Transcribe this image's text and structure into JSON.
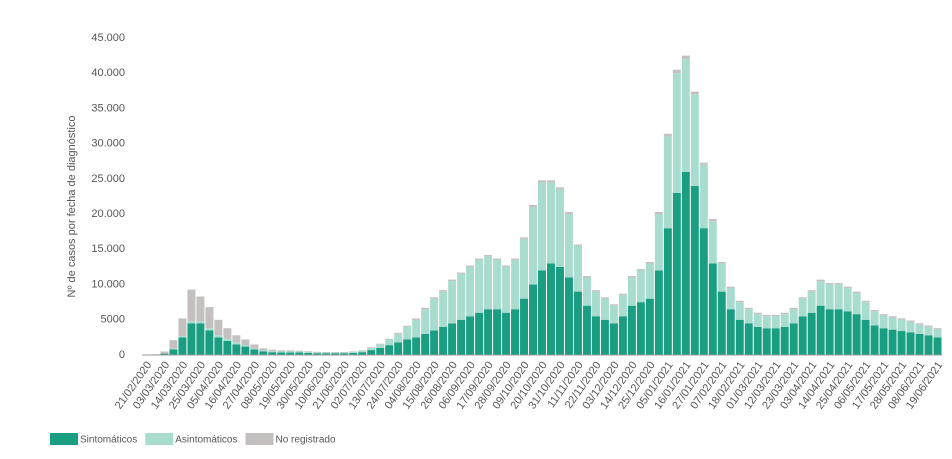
{
  "chart_data": {
    "type": "stacked_bar",
    "y_label": "Nº de casos por fecha de diagnóstico",
    "categories": [
      "21/02/2020",
      null,
      "03/03/2020",
      null,
      "14/03/2020",
      null,
      "25/03/2020",
      null,
      "05/04/2020",
      null,
      "16/04/2020",
      null,
      "27/04/2020",
      null,
      "08/05/2020",
      null,
      "19/05/2020",
      null,
      "30/05/2020",
      null,
      "10/06/2020",
      null,
      "21/06/2020",
      null,
      "02/07/2020",
      null,
      "13/07/2020",
      null,
      "24/07/2020",
      null,
      "04/08/2020",
      null,
      "15/08/2020",
      null,
      "26/08/2020",
      null,
      "06/09/2020",
      null,
      "17/09/2020",
      null,
      "28/09/2020",
      null,
      "09/10/2020",
      null,
      "20/10/2020",
      null,
      "31/10/2020",
      null,
      "11/11/2020",
      null,
      "22/11/2020",
      null,
      "03/12/2020",
      null,
      "14/12/2020",
      null,
      "25/12/2020",
      null,
      "05/01/2021",
      null,
      "16/01/2021",
      null,
      "27/01/2021",
      null,
      "07/02/2021",
      null,
      "18/02/2021",
      null,
      "01/03/2021",
      null,
      "12/03/2021",
      null,
      "23/03/2021",
      null,
      "03/04/2021",
      null,
      "14/04/2021",
      null,
      "25/04/2021",
      null,
      "06/05/2021",
      null,
      "17/05/2021",
      null,
      "28/05/2021",
      null,
      "08/06/2021",
      null,
      "19/06/2021"
    ],
    "series": [
      {
        "name": "Sintomáticos",
        "color": "#1a9e82",
        "values": [
          0,
          50,
          200,
          800,
          2500,
          4500,
          4500,
          3500,
          2500,
          2000,
          1500,
          1200,
          800,
          500,
          400,
          350,
          350,
          350,
          300,
          250,
          250,
          250,
          250,
          300,
          400,
          700,
          1000,
          1400,
          1800,
          2200,
          2500,
          3000,
          3500,
          4000,
          4500,
          5000,
          5500,
          6000,
          6500,
          6500,
          6000,
          6500,
          8000,
          10000,
          12000,
          13000,
          12500,
          11000,
          9000,
          7000,
          5500,
          5000,
          4500,
          5500,
          7000,
          7500,
          8000,
          12000,
          18000,
          23000,
          26000,
          24000,
          18000,
          13000,
          9000,
          6500,
          5000,
          4500,
          4000,
          3800,
          3800,
          4000,
          4500,
          5500,
          6000,
          7000,
          6500,
          6500,
          6200,
          5800,
          5000,
          4200,
          3800,
          3600,
          3400,
          3200,
          3000,
          2800,
          2500
        ]
      },
      {
        "name": "Asintomáticos",
        "color": "#a8dccf",
        "values": [
          0,
          0,
          0,
          100,
          200,
          300,
          300,
          300,
          300,
          300,
          300,
          200,
          200,
          150,
          150,
          150,
          150,
          150,
          150,
          100,
          100,
          100,
          100,
          150,
          200,
          300,
          500,
          800,
          1200,
          1800,
          2500,
          3500,
          4500,
          5000,
          6000,
          6500,
          7000,
          7500,
          7500,
          7000,
          6500,
          7000,
          8500,
          11000,
          12500,
          11500,
          11000,
          9000,
          6500,
          4000,
          3500,
          3000,
          2500,
          3000,
          4000,
          4500,
          5000,
          8000,
          13000,
          17000,
          16000,
          13000,
          9000,
          6000,
          4000,
          3000,
          2500,
          2000,
          1800,
          1700,
          1700,
          1800,
          2000,
          2500,
          3000,
          3500,
          3500,
          3500,
          3300,
          3000,
          2500,
          2000,
          1800,
          1700,
          1600,
          1500,
          1300,
          1200,
          1100
        ]
      },
      {
        "name": "No registrado",
        "color": "#c4c0c0",
        "values": [
          0,
          50,
          300,
          1200,
          2500,
          4500,
          3500,
          3000,
          2200,
          1500,
          1000,
          800,
          500,
          300,
          200,
          150,
          150,
          100,
          100,
          100,
          80,
          80,
          80,
          80,
          80,
          100,
          100,
          100,
          150,
          150,
          200,
          200,
          200,
          200,
          200,
          200,
          200,
          200,
          200,
          200,
          200,
          200,
          200,
          300,
          300,
          300,
          300,
          300,
          200,
          200,
          200,
          200,
          200,
          200,
          200,
          200,
          200,
          300,
          400,
          500,
          500,
          400,
          300,
          300,
          200,
          200,
          200,
          200,
          200,
          200,
          200,
          200,
          200,
          200,
          200,
          200,
          200,
          200,
          200,
          200,
          200,
          200,
          200,
          200,
          200,
          200,
          200,
          200,
          200
        ]
      }
    ],
    "ylim": [
      0,
      45000
    ],
    "yticks": [
      0,
      5000,
      {
        "value": 10000,
        "label": "10.000"
      },
      {
        "value": 15000,
        "label": "15.000"
      },
      {
        "value": 20000,
        "label": "20.000"
      },
      {
        "value": 25000,
        "label": "25.000"
      },
      {
        "value": 30000,
        "label": "30.000"
      },
      {
        "value": 35000,
        "label": "35.000"
      },
      {
        "value": 40000,
        "label": "40.000"
      },
      {
        "value": 45000,
        "label": "45.000"
      }
    ]
  }
}
